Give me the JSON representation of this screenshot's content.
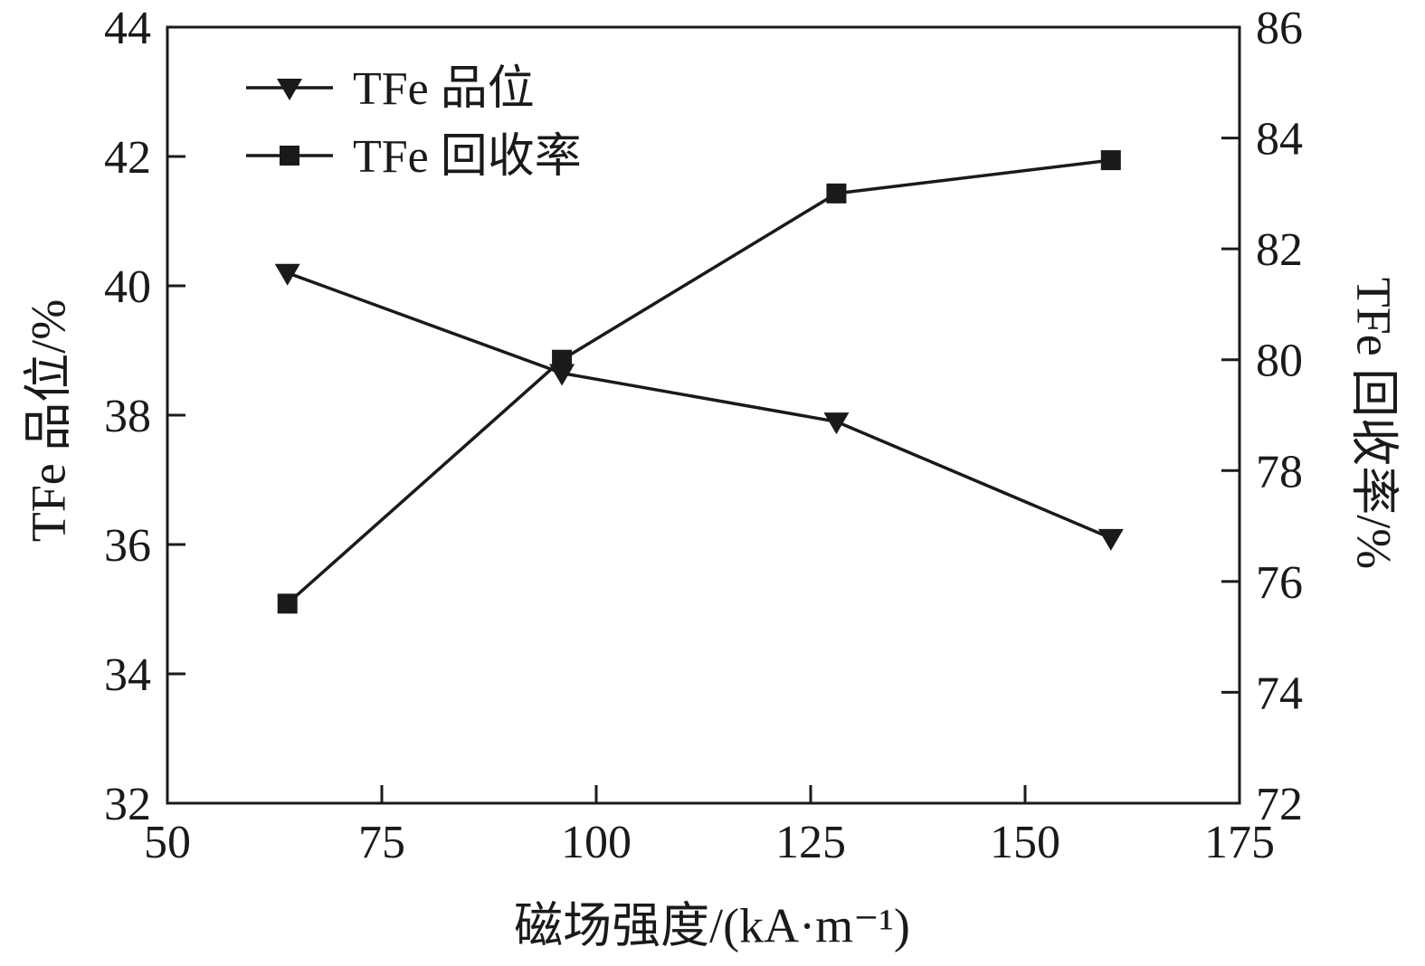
{
  "chart_data": {
    "type": "line",
    "x": [
      64,
      96,
      128,
      160
    ],
    "series": [
      {
        "name": "TFe 品位",
        "axis": "left",
        "marker": "triangle-down",
        "values": [
          40.2,
          38.65,
          37.9,
          36.1
        ]
      },
      {
        "name": "TFe 回收率",
        "axis": "right",
        "marker": "square",
        "values": [
          75.6,
          80.0,
          83.0,
          83.6
        ]
      }
    ],
    "xlabel": "磁场强度/(kA·m⁻¹)",
    "ylabel_left": "TFe 品位/%",
    "ylabel_right": "TFe 回收率/%",
    "xlim": [
      50,
      175
    ],
    "xticks": [
      50,
      75,
      100,
      125,
      150,
      175
    ],
    "ylim_left": [
      32,
      44
    ],
    "yticks_left": [
      32,
      34,
      36,
      38,
      40,
      42,
      44
    ],
    "ylim_right": [
      72,
      86
    ],
    "yticks_right": [
      72,
      74,
      76,
      78,
      80,
      82,
      84,
      86
    ],
    "grid": false,
    "legend_position": "top-left",
    "color": "#1a1a1a"
  }
}
